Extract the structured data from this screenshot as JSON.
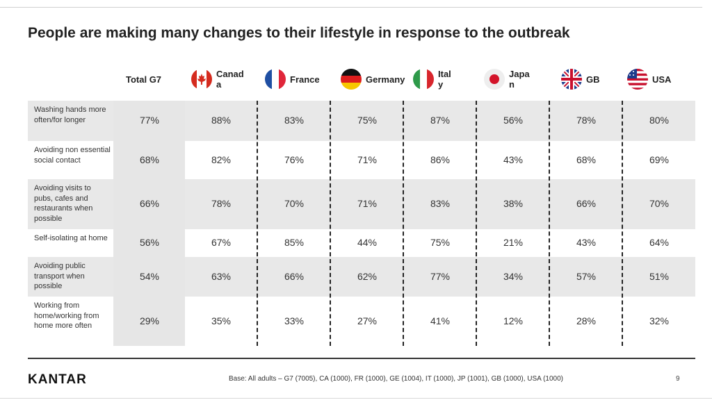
{
  "slide": {
    "title": "People are making many changes to their lifestyle in response to the outbreak",
    "logo": "KANTAR",
    "base_note": "Base: All adults – G7 (7005), CA (1000), FR (1000), GE (1004), IT (1000), JP (1001), GB (1000), USA (1000)",
    "page_number": "9"
  },
  "chart_data": {
    "type": "table",
    "title": "People are making many changes to their lifestyle in response to the outbreak",
    "columns": [
      {
        "label": "Total G7",
        "flag": "none"
      },
      {
        "label": "Canad\na",
        "flag": "canada-flag"
      },
      {
        "label": "France",
        "flag": "france-flag"
      },
      {
        "label": "Germany",
        "flag": "germany-flag"
      },
      {
        "label": "Ital\ny",
        "flag": "italy-flag"
      },
      {
        "label": "Japa\nn",
        "flag": "japan-flag"
      },
      {
        "label": "GB",
        "flag": "gb-flag"
      },
      {
        "label": "USA",
        "flag": "usa-flag"
      }
    ],
    "rows": [
      {
        "label": "Washing hands more often/for longer",
        "values": [
          "77%",
          "88%",
          "83%",
          "75%",
          "87%",
          "56%",
          "78%",
          "80%"
        ]
      },
      {
        "label": "Avoiding non essential social contact",
        "values": [
          "68%",
          "82%",
          "76%",
          "71%",
          "86%",
          "43%",
          "68%",
          "69%"
        ]
      },
      {
        "label": "Avoiding visits to pubs, cafes and restaurants when possible",
        "values": [
          "66%",
          "78%",
          "70%",
          "71%",
          "83%",
          "38%",
          "66%",
          "70%"
        ]
      },
      {
        "label": "Self-isolating at home",
        "values": [
          "56%",
          "67%",
          "85%",
          "44%",
          "75%",
          "21%",
          "43%",
          "64%"
        ]
      },
      {
        "label": "Avoiding public transport when possible",
        "values": [
          "54%",
          "63%",
          "66%",
          "62%",
          "77%",
          "34%",
          "57%",
          "51%"
        ]
      },
      {
        "label": "Working from home/working from home more often",
        "values": [
          "29%",
          "35%",
          "33%",
          "27%",
          "41%",
          "12%",
          "28%",
          "32%"
        ]
      }
    ],
    "colors": {
      "shade": "#e8e8e8",
      "g7_column": "#e6e6e6"
    }
  }
}
